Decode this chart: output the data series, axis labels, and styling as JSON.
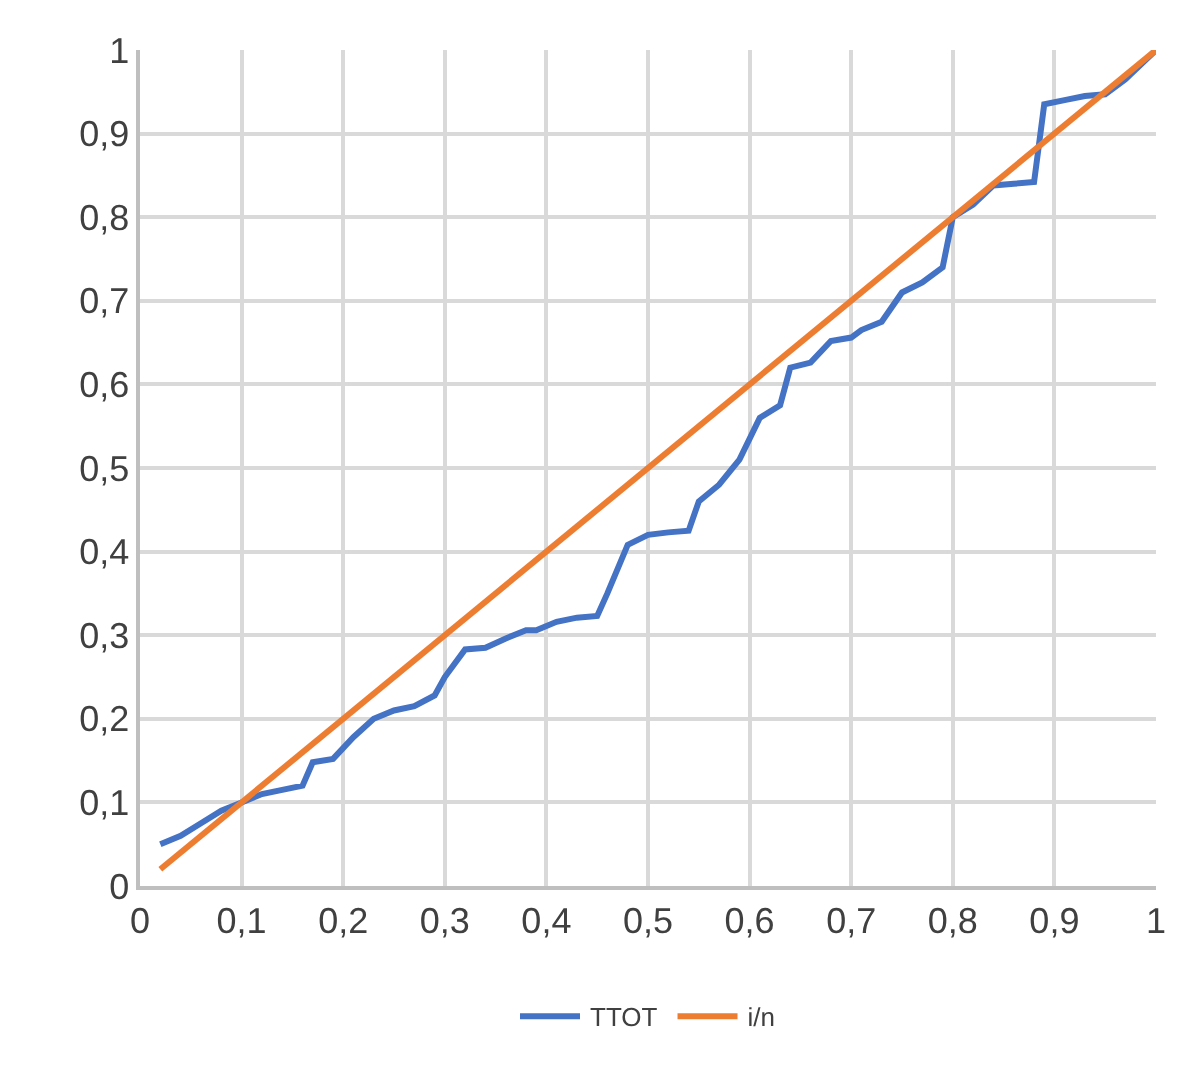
{
  "chart_data": {
    "type": "line",
    "series": [
      {
        "name": "TTOT",
        "color": "#4472c4",
        "x": [
          0.02,
          0.04,
          0.06,
          0.08,
          0.1,
          0.12,
          0.14,
          0.16,
          0.17,
          0.19,
          0.21,
          0.23,
          0.25,
          0.27,
          0.29,
          0.3,
          0.32,
          0.34,
          0.36,
          0.38,
          0.39,
          0.41,
          0.43,
          0.45,
          0.46,
          0.48,
          0.5,
          0.52,
          0.54,
          0.55,
          0.57,
          0.59,
          0.61,
          0.63,
          0.64,
          0.66,
          0.68,
          0.7,
          0.71,
          0.73,
          0.75,
          0.77,
          0.79,
          0.8,
          0.82,
          0.84,
          0.86,
          0.88,
          0.89,
          0.91,
          0.93,
          0.95,
          0.97,
          1.0
        ],
        "values": [
          0.05,
          0.06,
          0.075,
          0.09,
          0.1,
          0.11,
          0.115,
          0.12,
          0.148,
          0.152,
          0.178,
          0.2,
          0.21,
          0.215,
          0.228,
          0.25,
          0.283,
          0.285,
          0.296,
          0.306,
          0.306,
          0.316,
          0.321,
          0.323,
          0.35,
          0.408,
          0.42,
          0.423,
          0.425,
          0.46,
          0.48,
          0.51,
          0.56,
          0.575,
          0.62,
          0.626,
          0.652,
          0.656,
          0.665,
          0.675,
          0.71,
          0.722,
          0.74,
          0.8,
          0.815,
          0.838,
          0.84,
          0.842,
          0.935,
          0.94,
          0.945,
          0.947,
          0.965,
          1.0
        ]
      },
      {
        "name": "i/n",
        "color": "#ed7d31",
        "x": [
          0.02,
          1.0
        ],
        "values": [
          0.02,
          1.0
        ]
      }
    ],
    "xlim": [
      0,
      1
    ],
    "ylim": [
      0,
      1
    ],
    "xticks": [
      0,
      {
        "value": 0.1,
        "label": "0,1"
      },
      {
        "value": 0.2,
        "label": "0,2"
      },
      {
        "value": 0.3,
        "label": "0,3"
      },
      {
        "value": 0.4,
        "label": "0,4"
      },
      {
        "value": 0.5,
        "label": "0,5"
      },
      {
        "value": 0.6,
        "label": "0,6"
      },
      {
        "value": 0.7,
        "label": "0,7"
      },
      {
        "value": 0.8,
        "label": "0,8"
      },
      {
        "value": 0.9,
        "label": "0,9"
      },
      1
    ],
    "yticks": [
      0,
      {
        "value": 0.1,
        "label": "0,1"
      },
      {
        "value": 0.2,
        "label": "0,2"
      },
      {
        "value": 0.3,
        "label": "0,3"
      },
      {
        "value": 0.4,
        "label": "0,4"
      },
      {
        "value": 0.5,
        "label": "0,5"
      },
      {
        "value": 0.6,
        "label": "0,6"
      },
      {
        "value": 0.7,
        "label": "0,7"
      },
      {
        "value": 0.8,
        "label": "0,8"
      },
      {
        "value": 0.9,
        "label": "0,9"
      },
      1
    ],
    "grid": true,
    "legend": "bottom",
    "marker": "none",
    "line_style": "solid"
  }
}
